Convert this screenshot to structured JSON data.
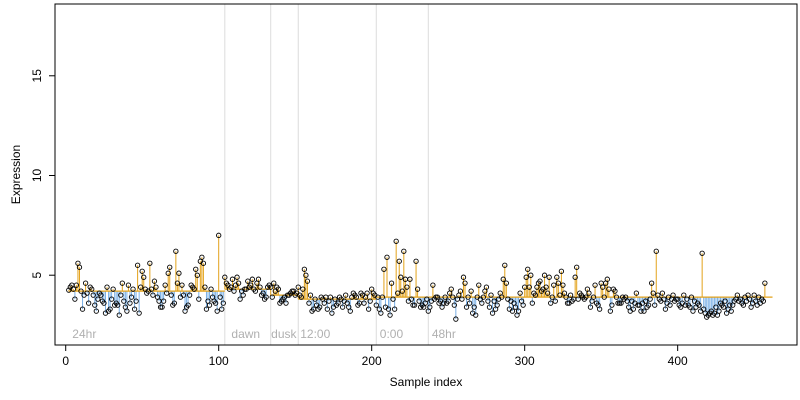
{
  "chart_data": {
    "type": "scatter",
    "xlabel": "Sample index",
    "ylabel": "Expression",
    "xlim": [
      -7,
      478
    ],
    "ylim": [
      1.5,
      18.6
    ],
    "x_ticks": [
      0,
      100,
      200,
      300,
      400
    ],
    "y_ticks": [
      5,
      10,
      15
    ],
    "grid": false,
    "legend": "none",
    "baseline_segments": [
      {
        "x_start": 2,
        "x_end": 104,
        "y": 4.2
      },
      {
        "x_start": 104,
        "x_end": 134,
        "y": 4.3
      },
      {
        "x_start": 134,
        "x_end": 152,
        "y": 4.0
      },
      {
        "x_start": 152,
        "x_end": 203,
        "y": 3.8
      },
      {
        "x_start": 203,
        "x_end": 237,
        "y": 3.9
      },
      {
        "x_start": 237,
        "x_end": 462,
        "y": 3.9
      }
    ],
    "dividers": [
      104,
      134,
      152,
      203,
      237
    ],
    "annotations": [
      {
        "x": 3,
        "text": "24hr"
      },
      {
        "x": 107,
        "text": "dawn"
      },
      {
        "x": 133,
        "text": "dusk"
      },
      {
        "x": 152,
        "text": "12:00"
      },
      {
        "x": 204,
        "text": "0:00"
      },
      {
        "x": 238,
        "text": "48hr"
      }
    ],
    "y": [
      4.25,
      4.4,
      4.5,
      4.3,
      3.8,
      4.5,
      5.6,
      5.4,
      4.2,
      3.3,
      4.0,
      4.6,
      4.1,
      3.6,
      4.4,
      4.3,
      4.0,
      3.5,
      3.2,
      3.8,
      4.1,
      4.0,
      3.7,
      3.6,
      3.1,
      4.4,
      3.2,
      3.3,
      3.8,
      4.3,
      3.5,
      3.6,
      3.5,
      3.0,
      4.0,
      4.6,
      3.7,
      3.4,
      3.2,
      4.5,
      3.6,
      3.9,
      4.3,
      3.3,
      3.7,
      5.5,
      3.1,
      4.4,
      5.2,
      4.9,
      4.3,
      4.1,
      4.2,
      5.6,
      4.3,
      4.0,
      4.7,
      4.4,
      3.9,
      3.7,
      3.4,
      3.4,
      3.7,
      4.5,
      4.1,
      5.1,
      5.4,
      4.0,
      3.5,
      3.6,
      6.2,
      4.6,
      5.1,
      3.9,
      4.5,
      4.0,
      3.2,
      3.4,
      3.5,
      4.0,
      4.5,
      4.4,
      4.3,
      5.3,
      5.0,
      3.8,
      5.7,
      5.9,
      5.6,
      4.4,
      3.3,
      3.7,
      3.5,
      4.3,
      3.9,
      3.7,
      3.6,
      3.2,
      7.0,
      3.9,
      3.3,
      3.6,
      4.9,
      4.6,
      4.5,
      4.3,
      4.4,
      4.8,
      4.2,
      4.5,
      4.9,
      4.6,
      3.8,
      4.2,
      4.0,
      4.3,
      4.3,
      4.7,
      4.4,
      4.5,
      4.8,
      4.3,
      4.2,
      4.6,
      4.8,
      4.4,
      4.0,
      4.1,
      3.8,
      3.9,
      4.4,
      4.5,
      4.4,
      3.9,
      4.6,
      4.2,
      4.4,
      4.3,
      3.6,
      3.7,
      3.8,
      3.9,
      3.6,
      4.0,
      4.0,
      4.1,
      4.2,
      4.2,
      4.0,
      4.1,
      4.4,
      4.0,
      3.9,
      4.3,
      5.3,
      5.0,
      4.7,
      3.6,
      4.0,
      3.2,
      3.3,
      3.8,
      3.5,
      3.3,
      3.4,
      3.9,
      3.8,
      3.6,
      3.9,
      3.3,
      3.7,
      3.9,
      3.1,
      3.4,
      3.8,
      3.5,
      3.6,
      3.9,
      3.8,
      3.4,
      3.7,
      4.0,
      3.6,
      3.4,
      3.2,
      3.9,
      4.1,
      4.0,
      3.9,
      3.5,
      3.6,
      4.1,
      4.0,
      3.6,
      3.9,
      4.1,
      3.3,
      3.7,
      4.3,
      4.1,
      4.0,
      3.5,
      3.9,
      3.3,
      3.1,
      3.9,
      5.3,
      3.4,
      5.9,
      3.3,
      3.0,
      4.6,
      3.8,
      3.3,
      6.7,
      4.1,
      5.7,
      4.9,
      4.2,
      6.2,
      4.8,
      4.4,
      3.7,
      4.8,
      3.8,
      3.5,
      3.5,
      5.7,
      4.3,
      3.7,
      3.4,
      3.5,
      3.4,
      3.6,
      3.8,
      3.2,
      3.4,
      3.7,
      4.5,
      3.8,
      3.9,
      3.9,
      3.6,
      3.7,
      3.4,
      3.6,
      3.9,
      3.6,
      3.7,
      4.1,
      4.3,
      3.9,
      3.5,
      2.8,
      3.8,
      4.0,
      4.2,
      3.8,
      4.9,
      4.6,
      3.4,
      3.9,
      3.6,
      4.2,
      3.1,
      3.4,
      3.0,
      3.9,
      4.5,
      3.8,
      3.6,
      3.9,
      4.2,
      4.4,
      3.7,
      3.4,
      4.0,
      3.1,
      3.7,
      3.3,
      3.5,
      3.8,
      4.1,
      3.9,
      4.8,
      5.5,
      4.6,
      3.8,
      3.3,
      3.7,
      3.2,
      3.6,
      3.4,
      3.0,
      3.2,
      4.1,
      3.7,
      3.5,
      4.4,
      4.9,
      5.3,
      4.4,
      5.0,
      3.6,
      4.1,
      4.0,
      4.4,
      4.6,
      4.7,
      4.2,
      4.3,
      5.0,
      4.4,
      4.1,
      4.9,
      3.6,
      3.9,
      4.5,
      3.7,
      4.9,
      4.6,
      4.0,
      5.2,
      4.5,
      4.1,
      3.9,
      3.6,
      3.6,
      4.0,
      3.7,
      3.8,
      4.9,
      5.4,
      3.8,
      4.1,
      4.0,
      3.9,
      3.8,
      3.9,
      4.3,
      4.1,
      3.4,
      3.7,
      3.9,
      4.5,
      3.6,
      3.5,
      3.3,
      4.6,
      4.4,
      3.9,
      4.6,
      4.8,
      4.3,
      3.2,
      3.5,
      4.3,
      4.2,
      3.9,
      3.6,
      3.6,
      3.6,
      3.9,
      3.8,
      3.9,
      3.7,
      3.4,
      3.2,
      3.7,
      3.3,
      3.6,
      4.1,
      3.5,
      3.5,
      3.2,
      3.6,
      3.2,
      3.7,
      3.4,
      3.5,
      3.8,
      4.6,
      4.1,
      3.5,
      6.2,
      4.0,
      3.8,
      3.7,
      4.1,
      3.8,
      3.3,
      3.6,
      3.9,
      3.5,
      3.8,
      4.0,
      3.7,
      3.8,
      3.8,
      3.5,
      3.4,
      3.6,
      4.0,
      3.5,
      3.8,
      3.5,
      3.4,
      3.9,
      3.2,
      3.7,
      3.4,
      3.6,
      3.5,
      3.2,
      6.1,
      3.3,
      3.1,
      2.9,
      3.0,
      3.1,
      3.2,
      3.0,
      3.1,
      3.4,
      3.0,
      3.2,
      3.6,
      3.5,
      3.4,
      3.7,
      3.1,
      3.3,
      3.5,
      3.2,
      3.5,
      3.7,
      3.8,
      4.0,
      3.7,
      3.8,
      3.6,
      3.5,
      3.9,
      3.7,
      4.0,
      3.8,
      3.4,
      3.6,
      4.0,
      3.7,
      3.5,
      3.9,
      3.6,
      3.8,
      3.7,
      4.6
    ]
  }
}
